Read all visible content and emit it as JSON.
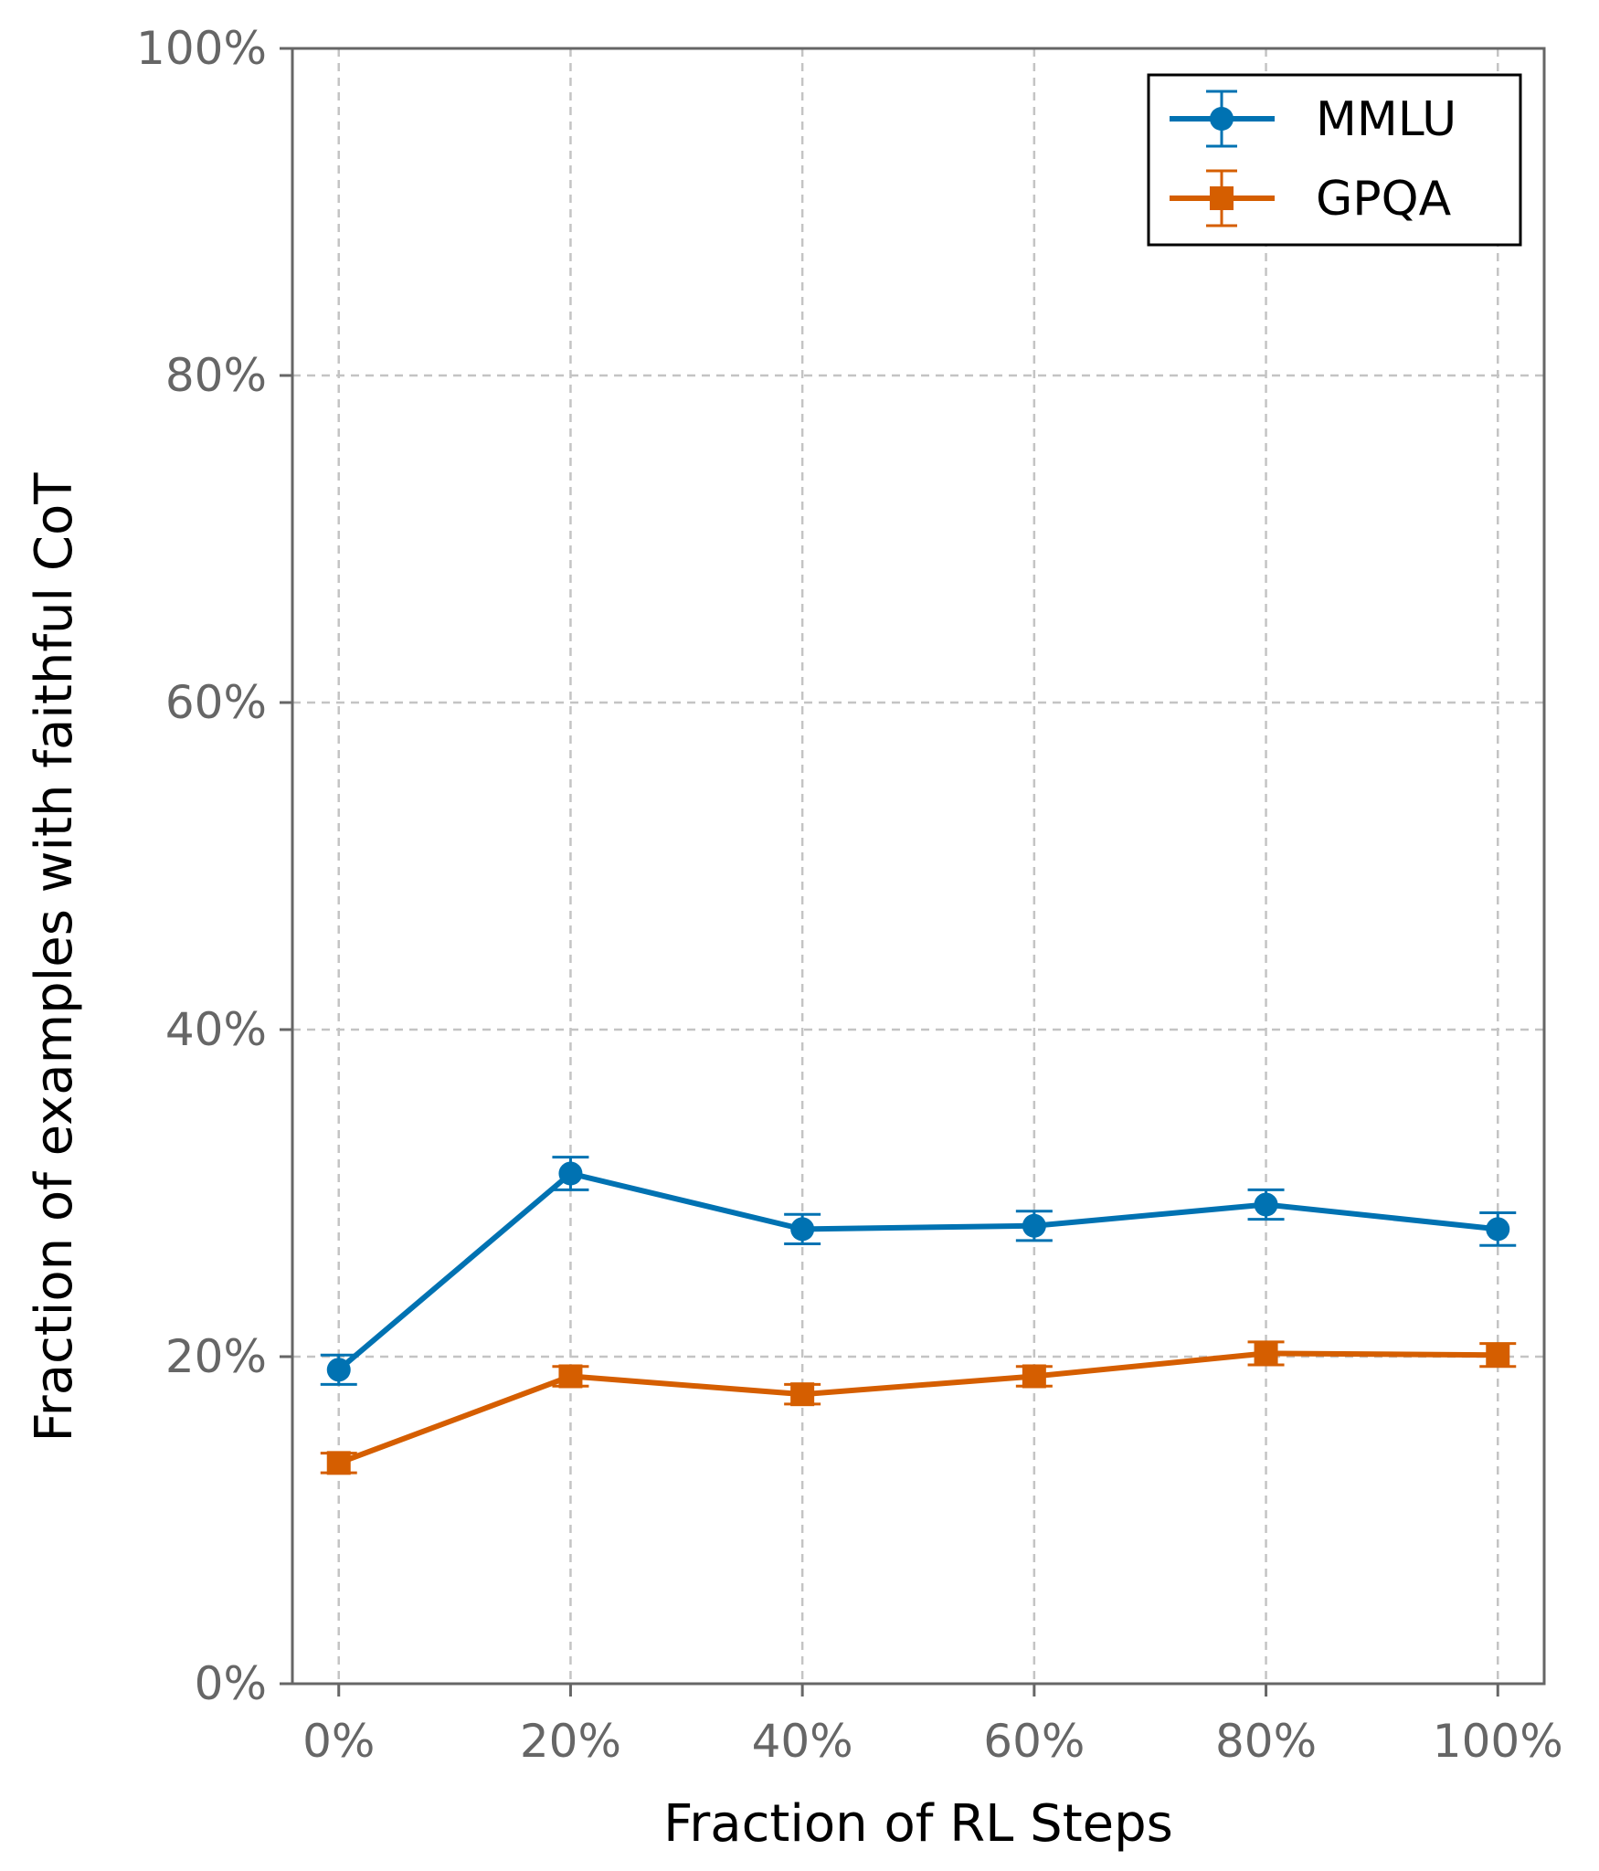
{
  "chart_data": {
    "type": "line",
    "xlabel": "Fraction of RL Steps",
    "ylabel": "Fraction of examples with faithful CoT",
    "categories": [
      "0%",
      "20%",
      "40%",
      "60%",
      "80%",
      "100%"
    ],
    "x": [
      0,
      20,
      40,
      60,
      80,
      100
    ],
    "xlim": [
      -4,
      104
    ],
    "ylim": [
      0,
      100
    ],
    "yticks": [
      0,
      20,
      40,
      60,
      80,
      100
    ],
    "ytick_labels": [
      "0%",
      "20%",
      "40%",
      "60%",
      "80%",
      "100%"
    ],
    "grid": true,
    "legend_position": "top-right",
    "series": [
      {
        "name": "MMLU",
        "color": "#0072b2",
        "marker": "circle",
        "values": [
          19.2,
          31.2,
          27.8,
          28.0,
          29.3,
          27.8
        ],
        "err": [
          0.9,
          1.0,
          0.9,
          0.9,
          0.9,
          1.0
        ]
      },
      {
        "name": "GPQA",
        "color": "#d55e00",
        "marker": "square",
        "values": [
          13.5,
          18.8,
          17.7,
          18.8,
          20.2,
          20.1
        ],
        "err": [
          0.6,
          0.6,
          0.6,
          0.6,
          0.7,
          0.7
        ]
      }
    ]
  }
}
